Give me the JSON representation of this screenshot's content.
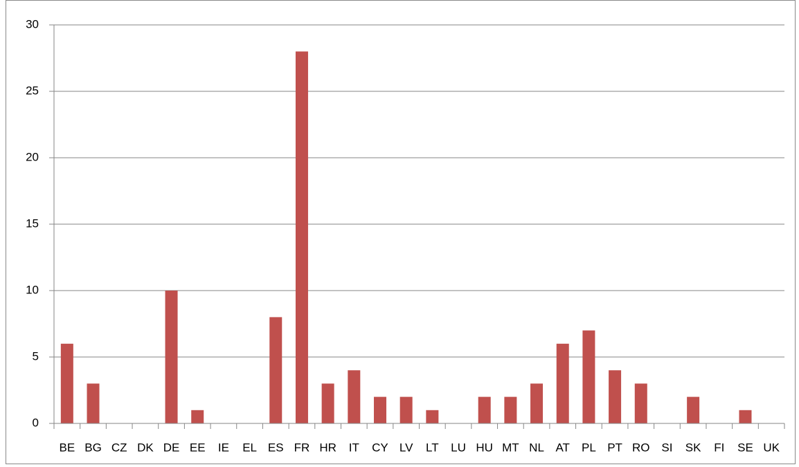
{
  "chart_data": {
    "type": "bar",
    "categories": [
      "BE",
      "BG",
      "CZ",
      "DK",
      "DE",
      "EE",
      "IE",
      "EL",
      "ES",
      "FR",
      "HR",
      "IT",
      "CY",
      "LV",
      "LT",
      "LU",
      "HU",
      "MT",
      "NL",
      "AT",
      "PL",
      "PT",
      "RO",
      "SI",
      "SK",
      "FI",
      "SE",
      "UK"
    ],
    "values": [
      6,
      3,
      0,
      0,
      10,
      1,
      0,
      0,
      8,
      28,
      3,
      4,
      2,
      2,
      1,
      0,
      2,
      2,
      3,
      6,
      7,
      4,
      3,
      0,
      2,
      0,
      1,
      0
    ],
    "color": "#c0504d",
    "ylim": [
      0,
      30
    ],
    "yticks": [
      0,
      5,
      10,
      15,
      20,
      25,
      30
    ],
    "grid": true
  }
}
